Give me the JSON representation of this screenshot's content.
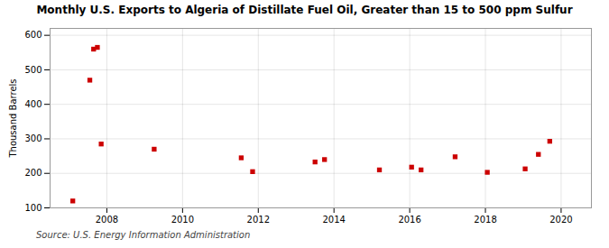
{
  "chart_data": {
    "type": "scatter",
    "title": "Monthly U.S. Exports to Algeria of Distillate Fuel Oil, Greater than 15 to 500 ppm Sulfur",
    "ylabel": "Thousand Barrels",
    "source": "Source: U.S. Energy Information Administration",
    "x": [
      2007.1,
      2007.55,
      2007.65,
      2007.75,
      2007.85,
      2009.25,
      2011.55,
      2011.85,
      2013.5,
      2013.75,
      2015.2,
      2016.05,
      2016.3,
      2017.2,
      2018.05,
      2019.05,
      2019.4,
      2019.7
    ],
    "values": [
      120,
      470,
      560,
      565,
      285,
      270,
      245,
      205,
      233,
      240,
      210,
      218,
      210,
      248,
      203,
      213,
      255,
      293
    ],
    "color": "#cc0000",
    "marker": "square",
    "xlim": [
      2006.5,
      2020.8
    ],
    "ylim": [
      100,
      620
    ],
    "xticks": [
      2008,
      2010,
      2012,
      2014,
      2016,
      2018,
      2020
    ],
    "yticks": [
      100,
      200,
      300,
      400,
      500,
      600
    ],
    "grid": true
  }
}
